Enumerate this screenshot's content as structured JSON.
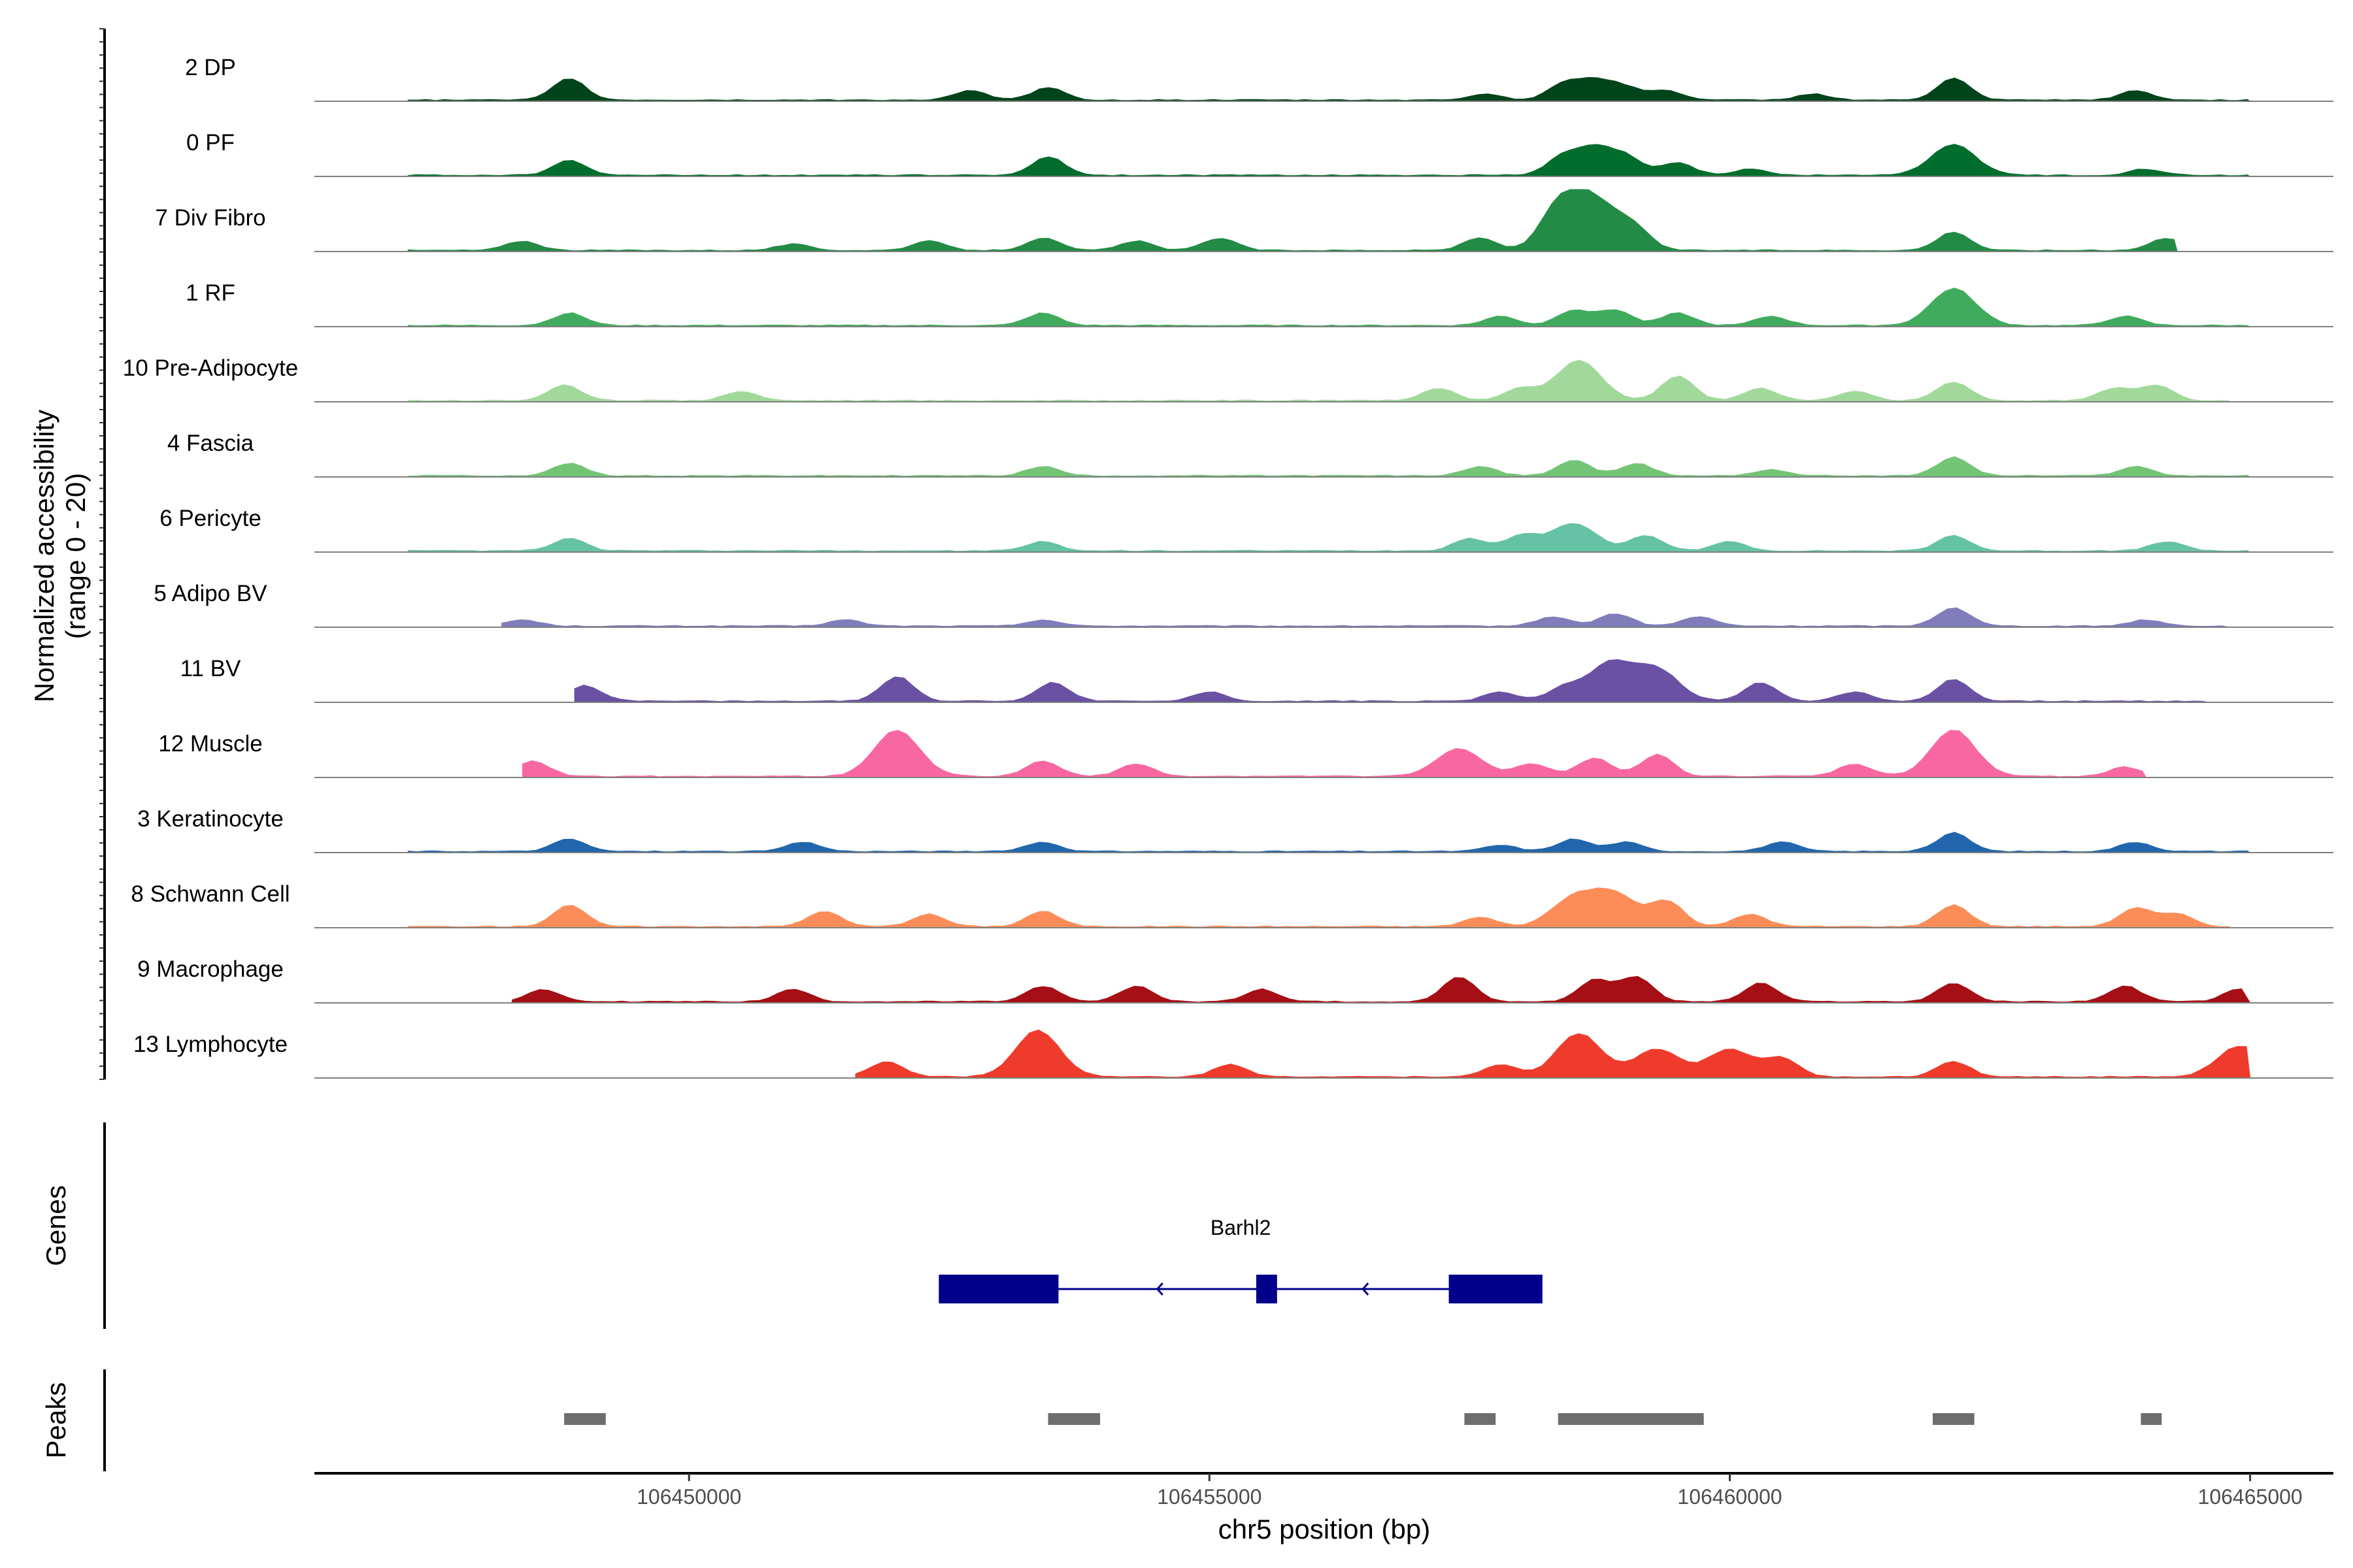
{
  "chart_data": {
    "type": "area",
    "title": "",
    "ylabel_line1": "Normalized accessibility",
    "ylabel_line2": "(range 0 - 20)",
    "xlabel": "chr5 position (bp)",
    "ylim": [
      0,
      20
    ],
    "xlim": [
      106446400,
      106465800
    ],
    "x_ticks": [
      106450000,
      106455000,
      106460000,
      106465000
    ],
    "x_tick_labels": [
      "106450000",
      "106455000",
      "106460000",
      "106465000"
    ],
    "genes_label": "Genes",
    "peaks_label": "Peaks",
    "tracks": [
      {
        "name": "2 DP",
        "color": "#00441b",
        "start": 106447300,
        "end": 106465000,
        "peaks": [
          [
            106448850,
            7
          ],
          [
            106452700,
            3
          ],
          [
            106453450,
            4
          ],
          [
            106457650,
            2
          ],
          [
            106458400,
            5
          ],
          [
            106458700,
            6
          ],
          [
            106459000,
            4
          ],
          [
            106459400,
            3
          ],
          [
            106460800,
            2
          ],
          [
            106462150,
            7
          ],
          [
            106463900,
            3
          ]
        ]
      },
      {
        "name": "0 PF",
        "color": "#006d2c",
        "start": 106447300,
        "end": 106465000,
        "peaks": [
          [
            106448850,
            5
          ],
          [
            106453450,
            6
          ],
          [
            106458400,
            6
          ],
          [
            106458700,
            8
          ],
          [
            106459000,
            6
          ],
          [
            106459500,
            4
          ],
          [
            106460200,
            2
          ],
          [
            106462150,
            10
          ],
          [
            106464000,
            2
          ]
        ]
      },
      {
        "name": "7 Div Fibro",
        "color": "#238b45",
        "start": 106447300,
        "end": 106464300,
        "peaks": [
          [
            106448400,
            3
          ],
          [
            106451000,
            2
          ],
          [
            106452300,
            3
          ],
          [
            106453400,
            4
          ],
          [
            106454300,
            3
          ],
          [
            106455100,
            4
          ],
          [
            106457600,
            4
          ],
          [
            106458300,
            6
          ],
          [
            106458500,
            14
          ],
          [
            106458800,
            10
          ],
          [
            106459100,
            5
          ],
          [
            106462150,
            6
          ],
          [
            106464200,
            4
          ]
        ]
      },
      {
        "name": "1 RF",
        "color": "#41ab5d",
        "start": 106447300,
        "end": 106465000,
        "peaks": [
          [
            106448850,
            4
          ],
          [
            106453400,
            4
          ],
          [
            106457800,
            3
          ],
          [
            106458500,
            5
          ],
          [
            106458900,
            5
          ],
          [
            106459500,
            4
          ],
          [
            106460400,
            3
          ],
          [
            106462150,
            12
          ],
          [
            106463800,
            3
          ]
        ]
      },
      {
        "name": "10 Pre-Adipocyte",
        "color": "#a1d99b",
        "start": 106447300,
        "end": 106464800,
        "peaks": [
          [
            106448800,
            5
          ],
          [
            106450500,
            3
          ],
          [
            106457200,
            4
          ],
          [
            106458000,
            4
          ],
          [
            106458550,
            13
          ],
          [
            106459500,
            8
          ],
          [
            106460300,
            4
          ],
          [
            106461200,
            3
          ],
          [
            106462150,
            6
          ],
          [
            106463700,
            4
          ],
          [
            106464100,
            5
          ]
        ]
      },
      {
        "name": "4 Fascia",
        "color": "#74c476",
        "start": 106447300,
        "end": 106465000,
        "peaks": [
          [
            106448850,
            4
          ],
          [
            106453400,
            3
          ],
          [
            106457600,
            3
          ],
          [
            106458500,
            5
          ],
          [
            106459100,
            4
          ],
          [
            106460400,
            2
          ],
          [
            106462150,
            6
          ],
          [
            106463900,
            3
          ]
        ]
      },
      {
        "name": "6 Pericyte",
        "color": "#66c2a4",
        "start": 106447300,
        "end": 106465000,
        "peaks": [
          [
            106448850,
            4
          ],
          [
            106453400,
            3
          ],
          [
            106457500,
            4
          ],
          [
            106458000,
            5
          ],
          [
            106458500,
            9
          ],
          [
            106459200,
            5
          ],
          [
            106460000,
            3
          ],
          [
            106462150,
            5
          ],
          [
            106464200,
            3
          ]
        ]
      },
      {
        "name": "5 Adipo BV",
        "color": "#807dba",
        "start": 106448200,
        "end": 106464800,
        "peaks": [
          [
            106448400,
            2
          ],
          [
            106451500,
            2
          ],
          [
            106453400,
            2
          ],
          [
            106458300,
            3
          ],
          [
            106458900,
            4
          ],
          [
            106459700,
            3
          ],
          [
            106462150,
            6
          ],
          [
            106464000,
            2
          ]
        ]
      },
      {
        "name": "11 BV",
        "color": "#6a51a3",
        "start": 106448900,
        "end": 106464600,
        "peaks": [
          [
            106449000,
            5
          ],
          [
            106452000,
            8
          ],
          [
            106453500,
            6
          ],
          [
            106455000,
            3
          ],
          [
            106457800,
            3
          ],
          [
            106458400,
            4
          ],
          [
            106458850,
            12
          ],
          [
            106459300,
            10
          ],
          [
            106460300,
            6
          ],
          [
            106461200,
            3
          ],
          [
            106462150,
            7
          ]
        ]
      },
      {
        "name": "12 Muscle",
        "color": "#f768a1",
        "start": 106448400,
        "end": 106464000,
        "peaks": [
          [
            106448500,
            5
          ],
          [
            106452000,
            15
          ],
          [
            106453400,
            5
          ],
          [
            106454300,
            4
          ],
          [
            106457400,
            9
          ],
          [
            106458100,
            4
          ],
          [
            106458700,
            6
          ],
          [
            106459300,
            7
          ],
          [
            106461200,
            4
          ],
          [
            106462150,
            15
          ],
          [
            106463800,
            3
          ]
        ]
      },
      {
        "name": "3 Keratinocyte",
        "color": "#2166ac",
        "start": 106447300,
        "end": 106465000,
        "peaks": [
          [
            106448850,
            4
          ],
          [
            106451100,
            3
          ],
          [
            106453400,
            3
          ],
          [
            106457800,
            2
          ],
          [
            106458500,
            4
          ],
          [
            106459000,
            3
          ],
          [
            106460500,
            3
          ],
          [
            106462150,
            6
          ],
          [
            106463900,
            3
          ]
        ]
      },
      {
        "name": "8 Schwann Cell",
        "color": "#fc8d59",
        "start": 106447300,
        "end": 106464800,
        "peaks": [
          [
            106448850,
            7
          ],
          [
            106451300,
            5
          ],
          [
            106452300,
            4
          ],
          [
            106453400,
            5
          ],
          [
            106457600,
            3
          ],
          [
            106458500,
            9
          ],
          [
            106458900,
            10
          ],
          [
            106459400,
            8
          ],
          [
            106460200,
            4
          ],
          [
            106462150,
            7
          ],
          [
            106463900,
            6
          ],
          [
            106464300,
            4
          ]
        ]
      },
      {
        "name": "9 Macrophage",
        "color": "#a50f15",
        "start": 106448300,
        "end": 106465000,
        "peaks": [
          [
            106448600,
            4
          ],
          [
            106451000,
            4
          ],
          [
            106453400,
            5
          ],
          [
            106454300,
            5
          ],
          [
            106455500,
            4
          ],
          [
            106457400,
            8
          ],
          [
            106458700,
            7
          ],
          [
            106459100,
            8
          ],
          [
            106460300,
            6
          ],
          [
            106462150,
            6
          ],
          [
            106463800,
            5
          ],
          [
            106464900,
            4
          ]
        ]
      },
      {
        "name": "13 Lymphocyte",
        "color": "#ef3b2c",
        "start": 106451600,
        "end": 106465000,
        "peaks": [
          [
            106451900,
            5
          ],
          [
            106453350,
            15
          ],
          [
            106455200,
            4
          ],
          [
            106457800,
            4
          ],
          [
            106458550,
            14
          ],
          [
            106459300,
            9
          ],
          [
            106460000,
            9
          ],
          [
            106460500,
            6
          ],
          [
            106462150,
            5
          ],
          [
            106464900,
            10
          ]
        ]
      }
    ],
    "genes": [
      {
        "name": "Barhl2",
        "strand": "-",
        "start": 106452400,
        "end": 106458200,
        "exons": [
          [
            106452400,
            106453550
          ],
          [
            106455450,
            106455650
          ],
          [
            106457300,
            106458200
          ]
        ]
      }
    ],
    "peak_regions": [
      [
        106448800,
        106449200
      ],
      [
        106453450,
        106453950
      ],
      [
        106457450,
        106457750
      ],
      [
        106458350,
        106459750
      ],
      [
        106461950,
        106462350
      ],
      [
        106463950,
        106464150
      ]
    ]
  }
}
